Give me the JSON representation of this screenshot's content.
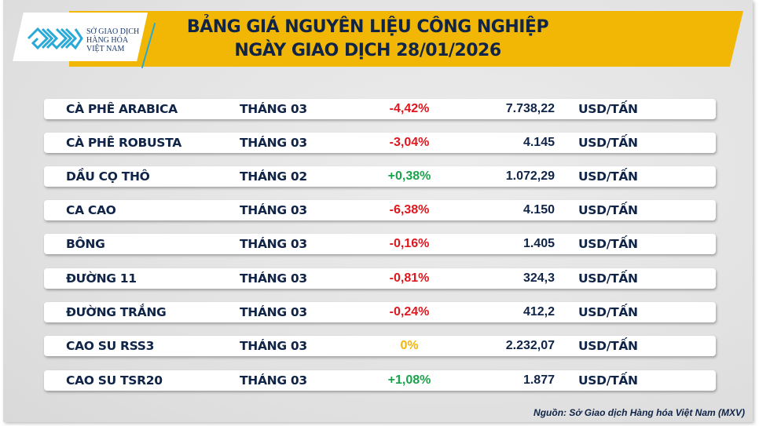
{
  "header": {
    "title_line1": "BẢNG GIÁ NGUYÊN LIỆU CÔNG NGHIỆP",
    "title_line2": "NGÀY GIAO DỊCH 28/01/2026"
  },
  "logo": {
    "line1": "SỞ GIAO DỊCH",
    "line2": "HÀNG HÓA",
    "line3": "VIỆT NAM",
    "icon": "mxv-logo-icon"
  },
  "colors": {
    "banner": "#f2b705",
    "text": "#0f2447",
    "down": "#e0161e",
    "up": "#1aa34a",
    "flat": "#f2b705"
  },
  "rows": [
    {
      "name": "CÀ PHÊ ARABICA",
      "month": "THÁNG 03",
      "change": "-4,42%",
      "dir": "down",
      "price": "7.738,22",
      "unit": "USD/TẤN"
    },
    {
      "name": "CÀ PHÊ ROBUSTA",
      "month": "THÁNG 03",
      "change": "-3,04%",
      "dir": "down",
      "price": "4.145",
      "unit": "USD/TẤN"
    },
    {
      "name": "DẦU CỌ THÔ",
      "month": "THÁNG 02",
      "change": "+0,38%",
      "dir": "up",
      "price": "1.072,29",
      "unit": "USD/TẤN"
    },
    {
      "name": "CA CAO",
      "month": "THÁNG 03",
      "change": "-6,38%",
      "dir": "down",
      "price": "4.150",
      "unit": "USD/TẤN"
    },
    {
      "name": "BÔNG",
      "month": "THÁNG 03",
      "change": "-0,16%",
      "dir": "down",
      "price": "1.405",
      "unit": "USD/TẤN"
    },
    {
      "name": "ĐƯỜNG 11",
      "month": "THÁNG 03",
      "change": "-0,81%",
      "dir": "down",
      "price": "324,3",
      "unit": "USD/TẤN"
    },
    {
      "name": "ĐƯỜNG TRẮNG",
      "month": "THÁNG 03",
      "change": "-0,24%",
      "dir": "down",
      "price": "412,2",
      "unit": "USD/TẤN"
    },
    {
      "name": "CAO SU RSS3",
      "month": "THÁNG 03",
      "change": "0%",
      "dir": "flat",
      "price": "2.232,07",
      "unit": "USD/TẤN"
    },
    {
      "name": "CAO SU TSR20",
      "month": "THÁNG 03",
      "change": "+1,08%",
      "dir": "up",
      "price": "1.877",
      "unit": "USD/TẤN"
    }
  ],
  "footer": {
    "source": "Nguồn: Sở Giao dịch Hàng hóa Việt Nam (MXV)"
  }
}
